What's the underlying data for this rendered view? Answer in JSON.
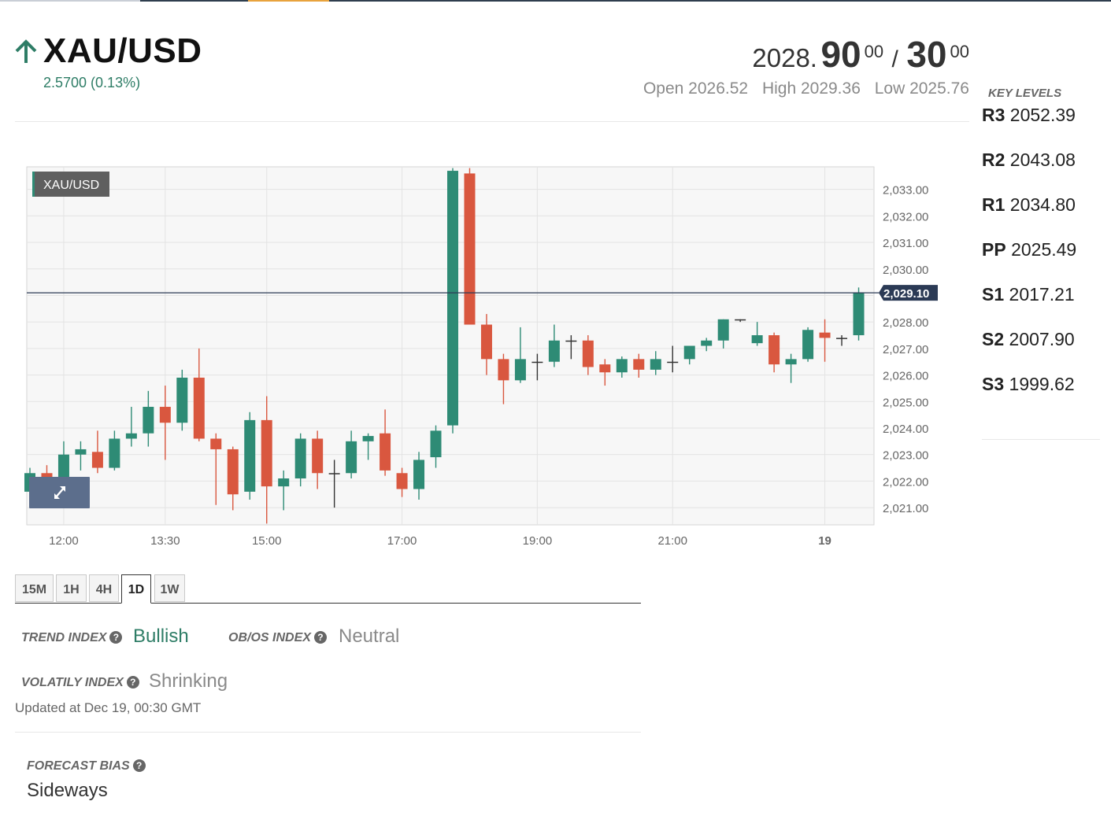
{
  "header": {
    "symbol": "XAU/USD",
    "change": "2.5700 (0.13%)",
    "bid_prefix": "2028.",
    "bid_big": "90",
    "bid_sup": "00",
    "separator": "/",
    "ask_big": "30",
    "ask_sup": "00",
    "open": "Open 2026.52",
    "high": "High 2029.36",
    "low": "Low 2025.76",
    "trend_icon": "arrow-up-icon",
    "up_color": "#2e7d66"
  },
  "key_levels": {
    "title": "KEY LEVELS",
    "items": [
      {
        "name": "R3",
        "value": "2052.39"
      },
      {
        "name": "R2",
        "value": "2043.08"
      },
      {
        "name": "R1",
        "value": "2034.80"
      },
      {
        "name": "PP",
        "value": "2025.49"
      },
      {
        "name": "S1",
        "value": "2017.21"
      },
      {
        "name": "S2",
        "value": "2007.90"
      },
      {
        "name": "S3",
        "value": "1999.62"
      }
    ]
  },
  "chart_data": {
    "type": "candlestick",
    "series_label": "XAU/USD",
    "ylim": [
      2020.35,
      2033.85
    ],
    "yticks": [
      2021,
      2022,
      2023,
      2024,
      2025,
      2026,
      2027,
      2028,
      2029,
      2030,
      2031,
      2032,
      2033
    ],
    "ytick_labels": [
      "2,021.00",
      "2,022.00",
      "2,023.00",
      "2,024.00",
      "2,025.00",
      "2,026.00",
      "2,027.00",
      "2,028.00",
      "",
      "2,030.00",
      "2,031.00",
      "2,032.00",
      "2,033.00"
    ],
    "current_price": 2029.1,
    "current_label": "2,029.10",
    "xtick_labels": [
      "12:00",
      "13:30",
      "15:00",
      "17:00",
      "19:00",
      "21:00",
      "19"
    ],
    "xtick_index": [
      2,
      8,
      14,
      22,
      30,
      38,
      47
    ],
    "bull_color": "#2e8b75",
    "bear_color": "#d9573f",
    "candles": [
      {
        "o": 2021.6,
        "h": 2022.5,
        "l": 2021.1,
        "c": 2022.3
      },
      {
        "o": 2022.3,
        "h": 2022.6,
        "l": 2021.7,
        "c": 2021.9
      },
      {
        "o": 2022.1,
        "h": 2023.5,
        "l": 2021.6,
        "c": 2023.0
      },
      {
        "o": 2023.0,
        "h": 2023.5,
        "l": 2022.4,
        "c": 2023.2
      },
      {
        "o": 2023.1,
        "h": 2023.9,
        "l": 2022.3,
        "c": 2022.5
      },
      {
        "o": 2022.5,
        "h": 2023.9,
        "l": 2022.4,
        "c": 2023.6
      },
      {
        "o": 2023.6,
        "h": 2024.8,
        "l": 2023.3,
        "c": 2023.8
      },
      {
        "o": 2023.8,
        "h": 2025.4,
        "l": 2023.3,
        "c": 2024.8
      },
      {
        "o": 2024.8,
        "h": 2025.6,
        "l": 2022.8,
        "c": 2024.2
      },
      {
        "o": 2024.2,
        "h": 2026.2,
        "l": 2023.9,
        "c": 2025.9
      },
      {
        "o": 2025.9,
        "h": 2027.0,
        "l": 2023.5,
        "c": 2023.6
      },
      {
        "o": 2023.6,
        "h": 2023.8,
        "l": 2021.1,
        "c": 2023.2
      },
      {
        "o": 2023.2,
        "h": 2023.3,
        "l": 2020.9,
        "c": 2021.5
      },
      {
        "o": 2021.6,
        "h": 2024.6,
        "l": 2021.3,
        "c": 2024.3
      },
      {
        "o": 2024.3,
        "h": 2025.2,
        "l": 2020.4,
        "c": 2021.8
      },
      {
        "o": 2021.8,
        "h": 2022.4,
        "l": 2020.9,
        "c": 2022.1
      },
      {
        "o": 2022.1,
        "h": 2023.8,
        "l": 2021.8,
        "c": 2023.6
      },
      {
        "o": 2023.6,
        "h": 2023.9,
        "l": 2021.7,
        "c": 2022.3
      },
      {
        "o": 2022.3,
        "h": 2022.8,
        "l": 2021.0,
        "c": 2022.3
      },
      {
        "o": 2022.3,
        "h": 2023.9,
        "l": 2022.1,
        "c": 2023.5
      },
      {
        "o": 2023.5,
        "h": 2023.8,
        "l": 2022.8,
        "c": 2023.7
      },
      {
        "o": 2023.8,
        "h": 2024.7,
        "l": 2022.2,
        "c": 2022.4
      },
      {
        "o": 2022.3,
        "h": 2022.5,
        "l": 2021.4,
        "c": 2021.7
      },
      {
        "o": 2021.7,
        "h": 2023.1,
        "l": 2021.3,
        "c": 2022.8
      },
      {
        "o": 2022.9,
        "h": 2024.1,
        "l": 2022.5,
        "c": 2023.9
      },
      {
        "o": 2024.1,
        "h": 2033.8,
        "l": 2023.8,
        "c": 2033.7
      },
      {
        "o": 2033.6,
        "h": 2033.8,
        "l": 2027.9,
        "c": 2027.9
      },
      {
        "o": 2027.9,
        "h": 2028.3,
        "l": 2026.0,
        "c": 2026.6
      },
      {
        "o": 2026.6,
        "h": 2026.8,
        "l": 2024.9,
        "c": 2025.8
      },
      {
        "o": 2025.8,
        "h": 2027.8,
        "l": 2025.7,
        "c": 2026.6
      },
      {
        "o": 2026.5,
        "h": 2026.8,
        "l": 2025.8,
        "c": 2026.5
      },
      {
        "o": 2026.5,
        "h": 2027.9,
        "l": 2026.3,
        "c": 2027.3
      },
      {
        "o": 2027.3,
        "h": 2027.5,
        "l": 2026.6,
        "c": 2027.3
      },
      {
        "o": 2027.3,
        "h": 2027.5,
        "l": 2026.0,
        "c": 2026.3
      },
      {
        "o": 2026.4,
        "h": 2026.6,
        "l": 2025.6,
        "c": 2026.1
      },
      {
        "o": 2026.1,
        "h": 2026.7,
        "l": 2025.9,
        "c": 2026.6
      },
      {
        "o": 2026.6,
        "h": 2026.8,
        "l": 2025.9,
        "c": 2026.2
      },
      {
        "o": 2026.2,
        "h": 2026.9,
        "l": 2026.0,
        "c": 2026.6
      },
      {
        "o": 2026.5,
        "h": 2027.1,
        "l": 2026.1,
        "c": 2026.5
      },
      {
        "o": 2026.6,
        "h": 2027.1,
        "l": 2026.4,
        "c": 2027.1
      },
      {
        "o": 2027.1,
        "h": 2027.4,
        "l": 2026.9,
        "c": 2027.3
      },
      {
        "o": 2027.3,
        "h": 2028.1,
        "l": 2027.0,
        "c": 2028.1
      },
      {
        "o": 2028.1,
        "h": 2028.1,
        "l": 2028.0,
        "c": 2028.1
      },
      {
        "o": 2027.2,
        "h": 2028.0,
        "l": 2027.1,
        "c": 2027.5
      },
      {
        "o": 2027.5,
        "h": 2027.6,
        "l": 2026.1,
        "c": 2026.4
      },
      {
        "o": 2026.4,
        "h": 2026.8,
        "l": 2025.7,
        "c": 2026.6
      },
      {
        "o": 2026.6,
        "h": 2027.8,
        "l": 2026.5,
        "c": 2027.7
      },
      {
        "o": 2027.6,
        "h": 2028.1,
        "l": 2026.5,
        "c": 2027.4
      },
      {
        "o": 2027.4,
        "h": 2027.5,
        "l": 2027.1,
        "c": 2027.4
      },
      {
        "o": 2027.5,
        "h": 2029.3,
        "l": 2027.3,
        "c": 2029.1
      }
    ]
  },
  "timeframes": {
    "items": [
      "15M",
      "1H",
      "4H",
      "1D",
      "1W"
    ],
    "active": "1D"
  },
  "indices": {
    "trend_label": "TREND INDEX",
    "trend_value": "Bullish",
    "obos_label": "OB/OS INDEX",
    "obos_value": "Neutral",
    "volatility_label": "VOLATILY INDEX",
    "volatility_value": "Shrinking",
    "help_glyph": "?",
    "help_icon": "help-circle-icon"
  },
  "updated": "Updated at Dec 19, 00:30 GMT",
  "forecast": {
    "label": "FORECAST BIAS",
    "value": "Sideways"
  },
  "expand_icon": "expand-arrows-icon"
}
